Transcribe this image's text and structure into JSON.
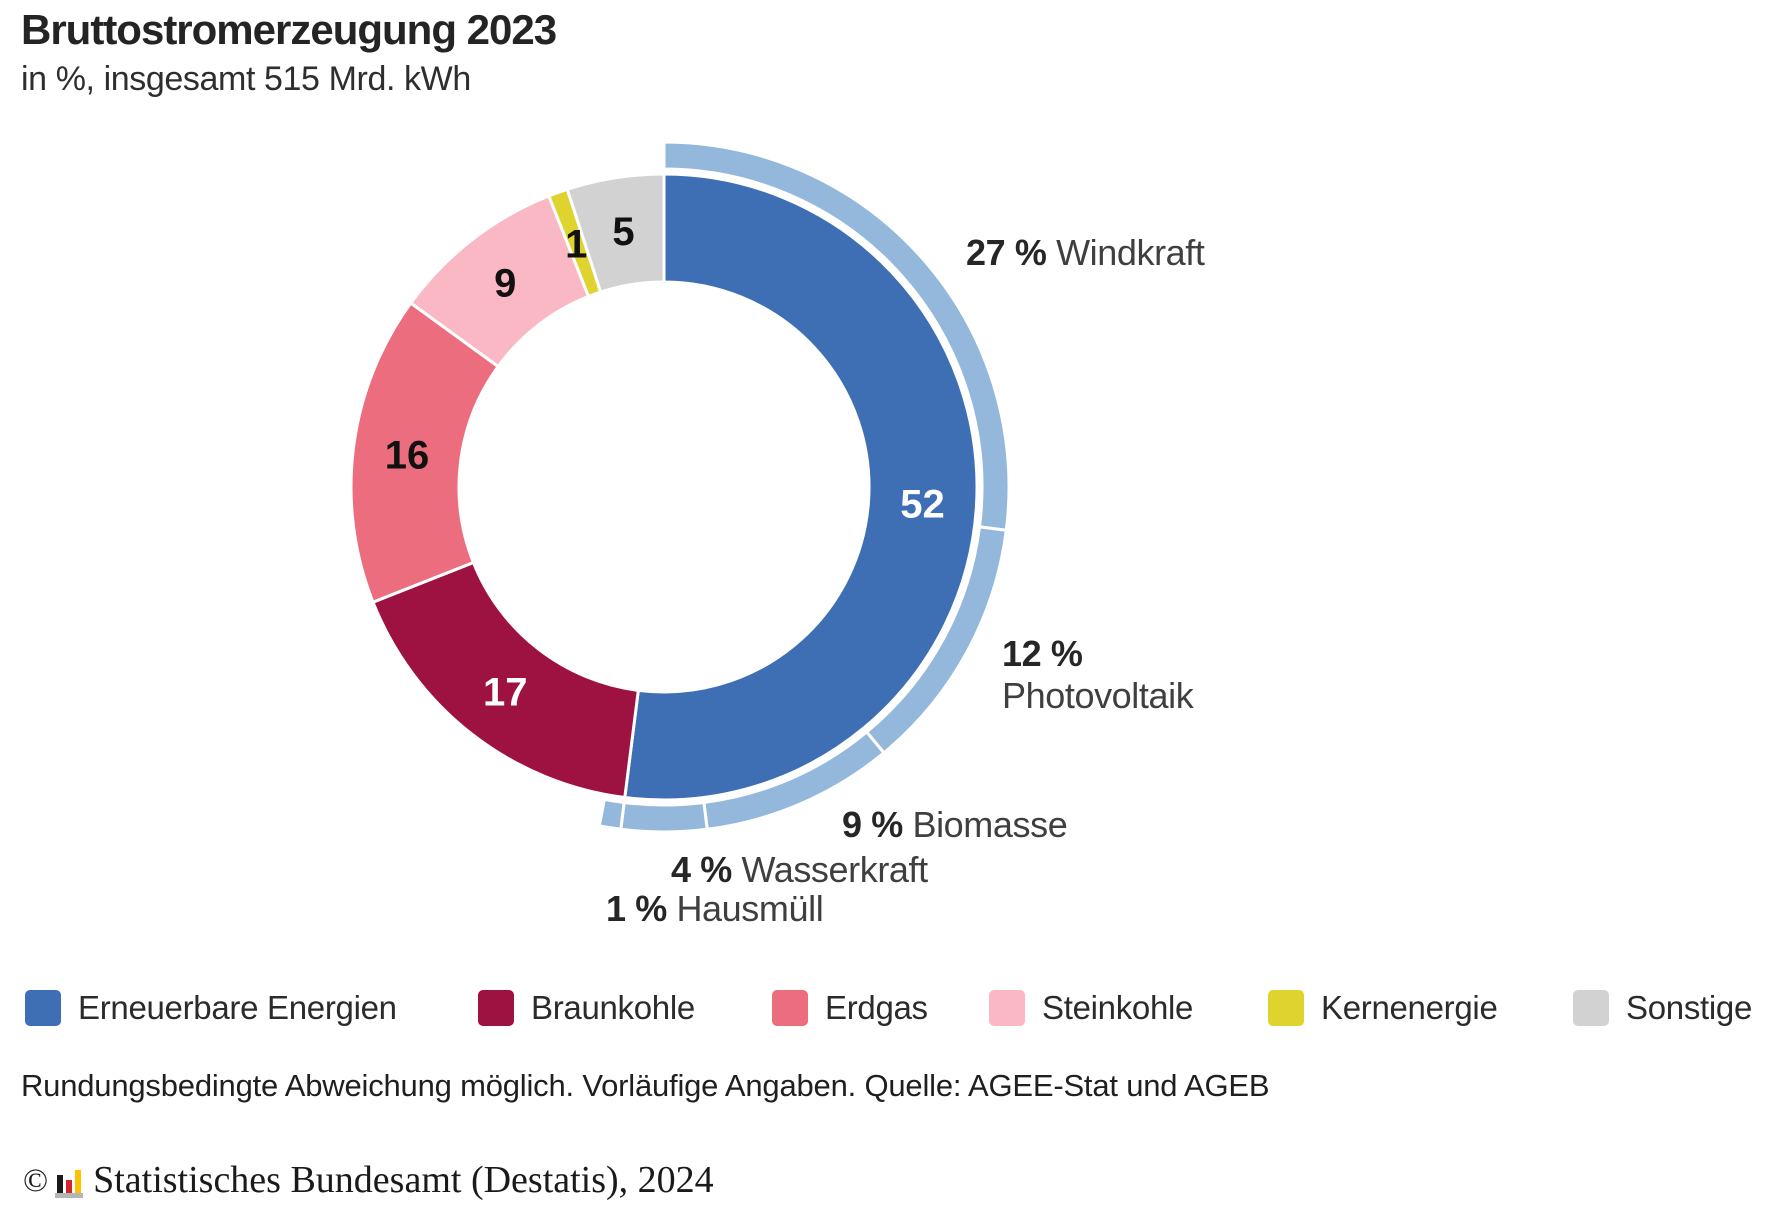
{
  "header": {
    "title": "Bruttostromerzeugung 2023",
    "subtitle": "in %, insgesamt 515 Mrd. kWh"
  },
  "chart_data": {
    "type": "donut",
    "title": "Bruttostromerzeugung 2023",
    "subtitle": "in %, insgesamt 515 Mrd. kWh",
    "unit": "%",
    "total_label": "insgesamt 515 Mrd. kWh",
    "start_angle_deg": 0,
    "direction": "clockwise",
    "legend_position": "bottom",
    "inner_ring": [
      {
        "id": "erneuerbare-energien",
        "label": "Erneuerbare Energien",
        "value": 52,
        "color": "#3e6fb4",
        "value_label": "52",
        "value_label_color": "#ffffff"
      },
      {
        "id": "braunkohle",
        "label": "Braunkohle",
        "value": 17,
        "color": "#9e1242",
        "value_label": "17",
        "value_label_color": "#ffffff"
      },
      {
        "id": "erdgas",
        "label": "Erdgas",
        "value": 16,
        "color": "#ec6e7e",
        "value_label": "16",
        "value_label_color": "#111111"
      },
      {
        "id": "steinkohle",
        "label": "Steinkohle",
        "value": 9,
        "color": "#fab8c4",
        "value_label": "9",
        "value_label_color": "#111111"
      },
      {
        "id": "kernenergie",
        "label": "Kernenergie",
        "value": 1,
        "color": "#ded32f",
        "value_label": "1",
        "value_label_color": "#111111"
      },
      {
        "id": "sonstige",
        "label": "Sonstige",
        "value": 5,
        "color": "#d2d2d2",
        "value_label": "5",
        "value_label_color": "#111111"
      }
    ],
    "outer_ring": [
      {
        "id": "windkraft",
        "label": "Windkraft",
        "value": 27,
        "color": "#94b8db"
      },
      {
        "id": "photovoltaik",
        "label": "Photovoltaik",
        "value": 12,
        "color": "#94b8db"
      },
      {
        "id": "biomasse",
        "label": "Biomasse",
        "value": 9,
        "color": "#94b8db"
      },
      {
        "id": "wasserkraft",
        "label": "Wasserkraft",
        "value": 4,
        "color": "#94b8db"
      },
      {
        "id": "hausmuell",
        "label": "Hausmüll",
        "value": 1,
        "color": "#94b8db"
      }
    ],
    "callouts": [
      {
        "id": "windkraft",
        "bold": "27 %",
        "text": "Windkraft"
      },
      {
        "id": "photovoltaik",
        "bold": "12 %",
        "text": "Photovoltaik"
      },
      {
        "id": "biomasse",
        "bold": "9 %",
        "text": "Biomasse"
      },
      {
        "id": "wasserkraft",
        "bold": "4 %",
        "text": "Wasserkraft"
      },
      {
        "id": "hausmuell",
        "bold": "1 %",
        "text": "Hausmüll"
      }
    ]
  },
  "legend": {
    "items": [
      {
        "label": "Erneuerbare Energien",
        "color": "#3e6fb4"
      },
      {
        "label": "Braunkohle",
        "color": "#9e1242"
      },
      {
        "label": "Erdgas",
        "color": "#ec6e7e"
      },
      {
        "label": "Steinkohle",
        "color": "#fab8c4"
      },
      {
        "label": "Kernenergie",
        "color": "#ded32f"
      },
      {
        "label": "Sonstige",
        "color": "#d2d2d2"
      }
    ]
  },
  "footer": {
    "note": "Rundungsbedingte Abweichung möglich. Vorläufige Angaben. Quelle: AGEE-Stat und AGEB",
    "copyright_symbol": "©",
    "copyright": "Statistisches Bundesamt (Destatis), 2024",
    "logo_colors": {
      "black": "#1a1a1a",
      "red": "#d2232e",
      "gold": "#fdc300",
      "base_gray": "#b5b5b5"
    }
  }
}
